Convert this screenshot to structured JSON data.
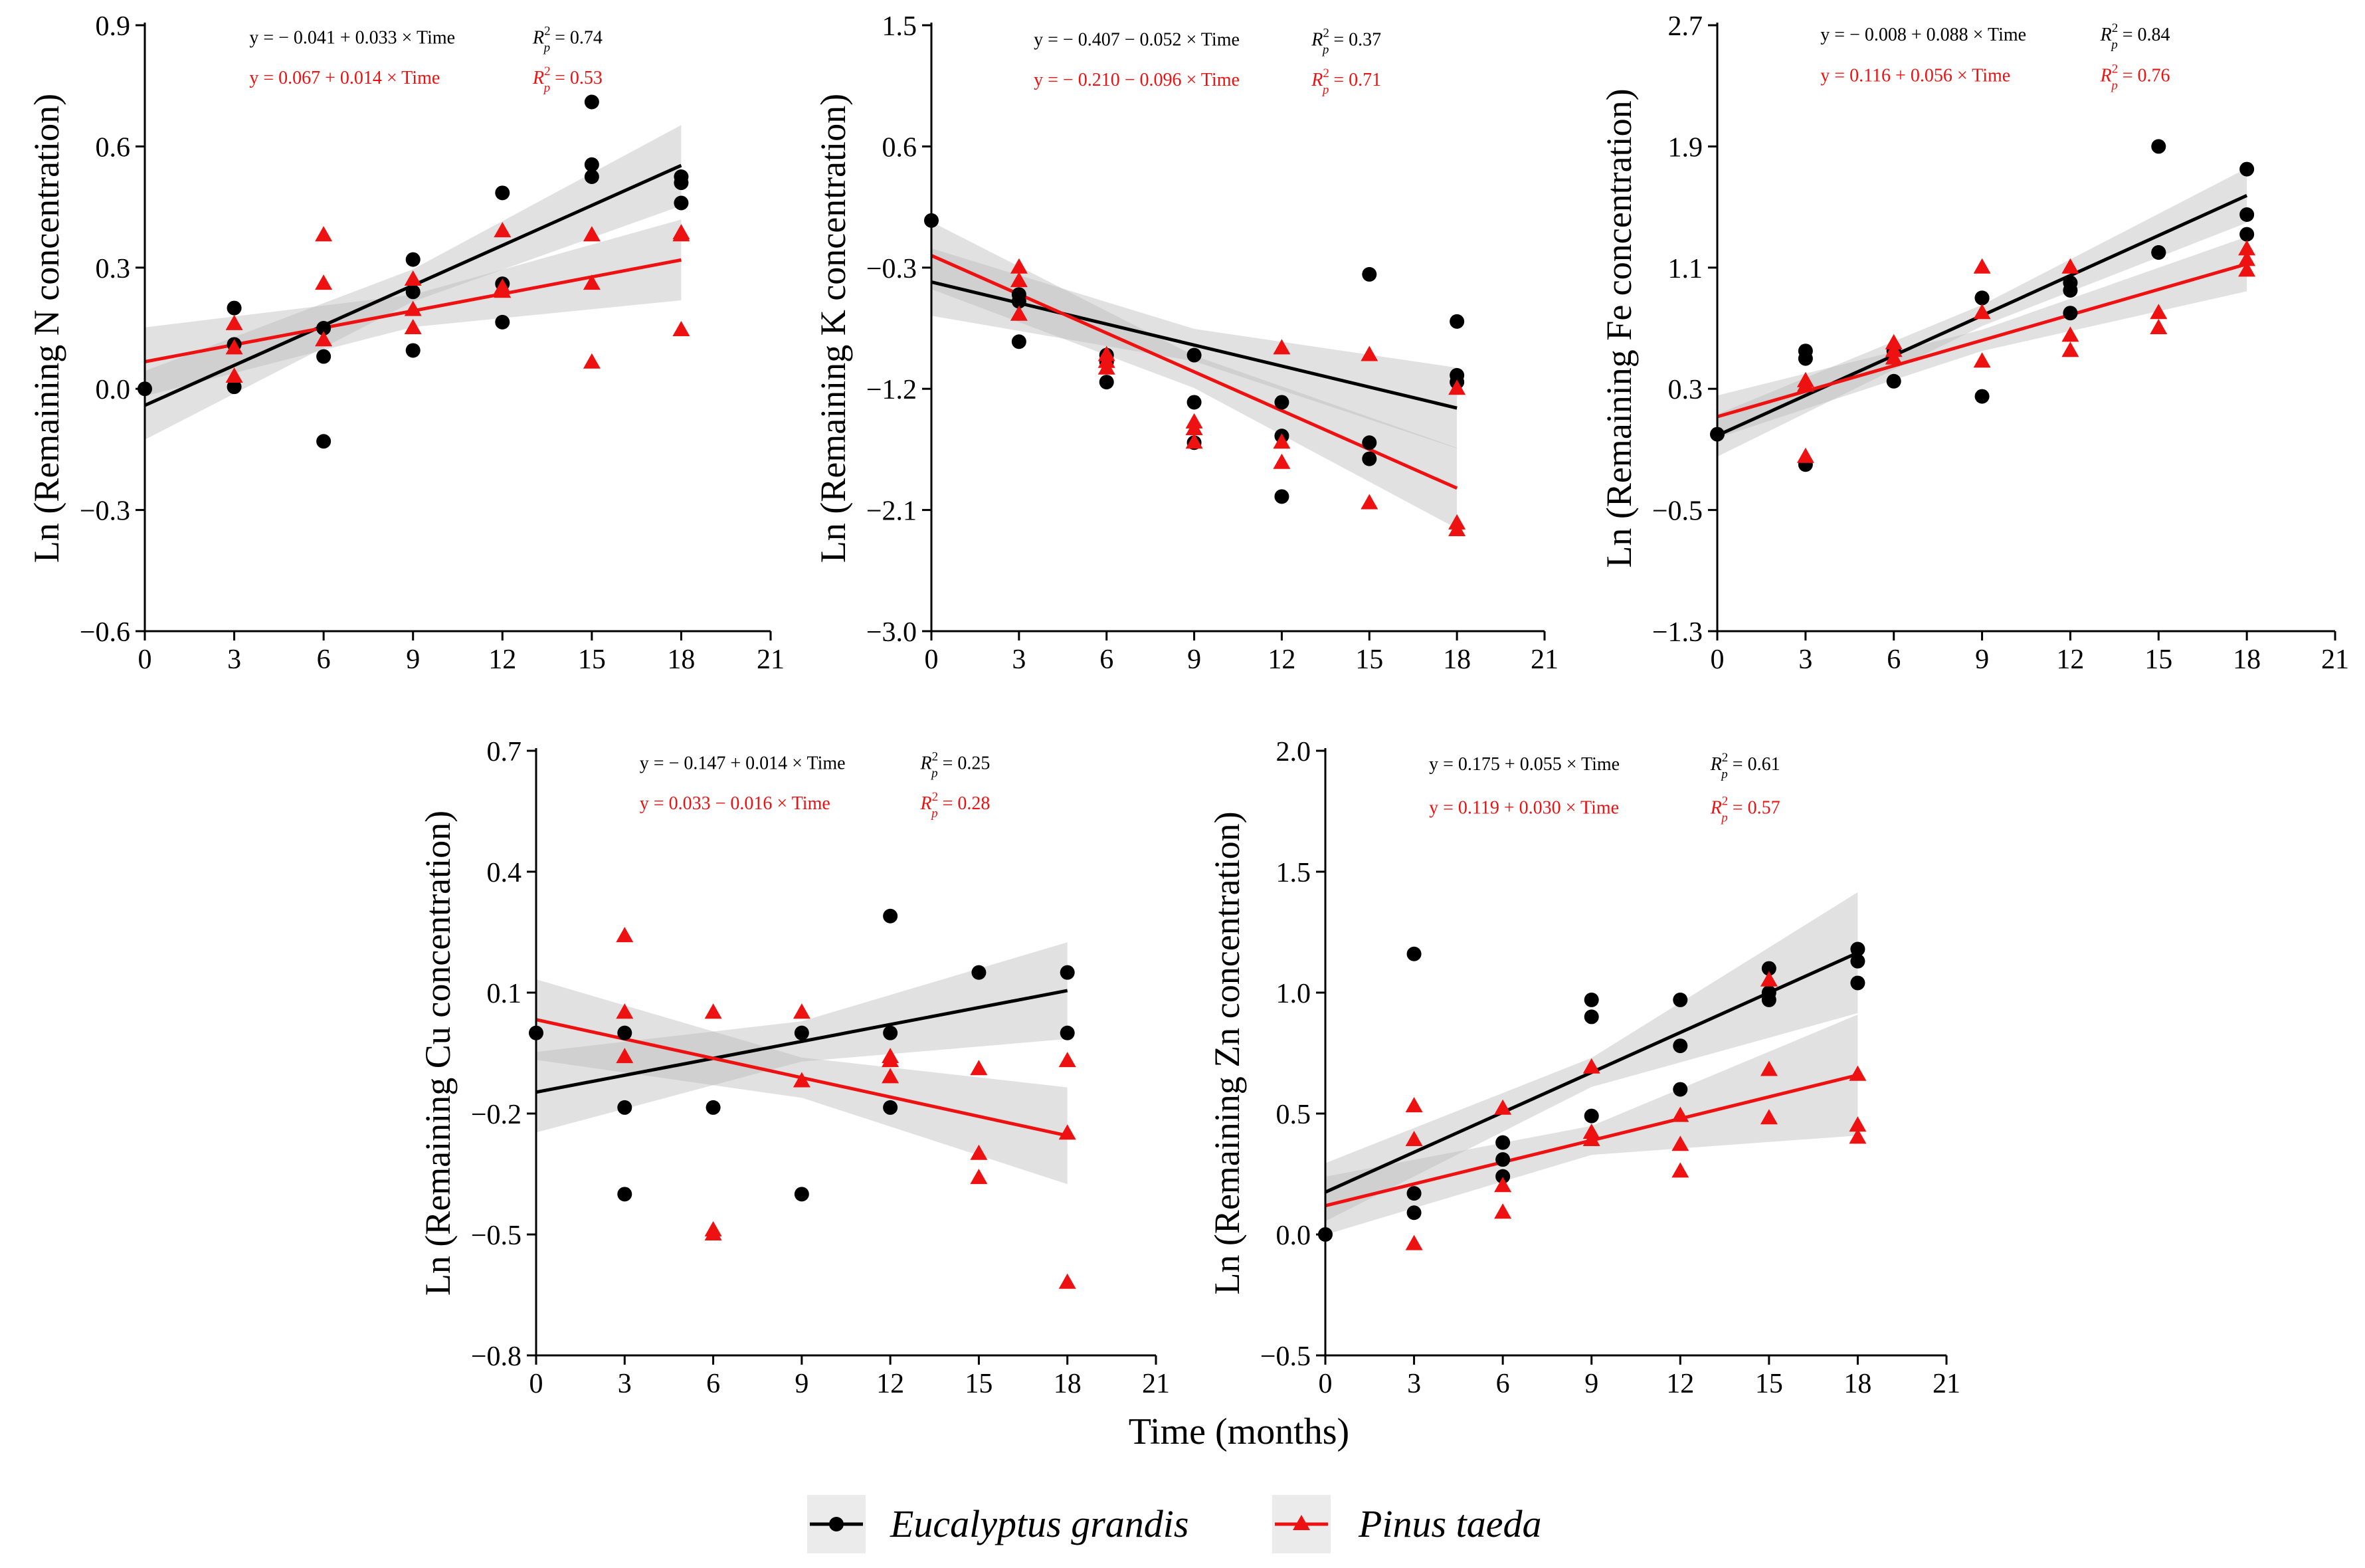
{
  "figure": {
    "xlabel": "Time (months)",
    "legend": [
      {
        "name": "Eucalyptus grandis",
        "color": "#000000",
        "marker": "circle"
      },
      {
        "name": "Pinus taeda",
        "color": "#ee1111",
        "marker": "triangle"
      }
    ]
  },
  "chart_data": [
    {
      "type": "scatter",
      "element": "N",
      "ylabel": "Ln (Remaining N concentration)",
      "xlim": [
        0,
        21
      ],
      "xticks": [
        0,
        3,
        6,
        9,
        12,
        15,
        18,
        21
      ],
      "ylim": [
        -0.6,
        0.9
      ],
      "yticks": [
        -0.6,
        -0.3,
        0.0,
        0.3,
        0.6,
        0.9
      ],
      "ytick_labels": [
        "−0.6",
        "−0.3",
        "0.0",
        "0.3",
        "0.6",
        "0.9"
      ],
      "eq_ymax": 0.855,
      "eq_ystep": 0.1,
      "band_halfwidth": [
        0.085,
        0.04,
        0.1
      ],
      "series": [
        {
          "name": "Eucalyptus grandis",
          "equation": "y = − 0.041 + 0.033 × Time",
          "r2": "0.74",
          "intercept": -0.041,
          "slope": 0.033,
          "points": [
            [
              0,
              0
            ],
            [
              3,
              0.2
            ],
            [
              3,
              0.11
            ],
            [
              3,
              0.005
            ],
            [
              6,
              0.15
            ],
            [
              6,
              0.08
            ],
            [
              6,
              -0.13
            ],
            [
              9,
              0.32
            ],
            [
              9,
              0.24
            ],
            [
              9,
              0.095
            ],
            [
              12,
              0.485
            ],
            [
              12,
              0.26
            ],
            [
              12,
              0.165
            ],
            [
              15,
              0.71
            ],
            [
              15,
              0.555
            ],
            [
              15,
              0.525
            ],
            [
              18,
              0.525
            ],
            [
              18,
              0.51
            ],
            [
              18,
              0.46
            ]
          ]
        },
        {
          "name": "Pinus taeda",
          "equation": "y = 0.067 + 0.014 × Time",
          "r2": "0.53",
          "intercept": 0.067,
          "slope": 0.014,
          "points": [
            [
              3,
              0.16
            ],
            [
              3,
              0.1
            ],
            [
              3,
              0.03
            ],
            [
              6,
              0.38
            ],
            [
              6,
              0.26
            ],
            [
              6,
              0.12
            ],
            [
              9,
              0.27
            ],
            [
              9,
              0.195
            ],
            [
              9,
              0.15
            ],
            [
              12,
              0.39
            ],
            [
              12,
              0.25
            ],
            [
              12,
              0.24
            ],
            [
              15,
              0.38
            ],
            [
              15,
              0.26
            ],
            [
              15,
              0.065
            ],
            [
              18,
              0.385
            ],
            [
              18,
              0.38
            ],
            [
              18,
              0.145
            ]
          ]
        }
      ]
    },
    {
      "type": "scatter",
      "element": "K",
      "ylabel": "Ln (Remaining K concentration)",
      "xlim": [
        0,
        21
      ],
      "xticks": [
        0,
        3,
        6,
        9,
        12,
        15,
        18,
        21
      ],
      "ylim": [
        -3.0,
        1.5
      ],
      "yticks": [
        -3.0,
        -2.1,
        -1.2,
        -0.3,
        0.6,
        1.5
      ],
      "ytick_labels": [
        "−3.0",
        "−2.1",
        "−1.2",
        "−0.3",
        "0.6",
        "1.5"
      ],
      "eq_ymax": 1.35,
      "eq_ystep": 0.3,
      "band_halfwidth": [
        0.25,
        0.12,
        0.3
      ],
      "series": [
        {
          "name": "Eucalyptus grandis",
          "equation": "y = − 0.407 − 0.052 × Time",
          "r2": "0.37",
          "intercept": -0.407,
          "slope": -0.052,
          "points": [
            [
              0,
              0.05
            ],
            [
              3,
              -0.5
            ],
            [
              3,
              -0.55
            ],
            [
              3,
              -0.85
            ],
            [
              6,
              -0.95
            ],
            [
              6,
              -1.0
            ],
            [
              6,
              -1.15
            ],
            [
              9,
              -0.95
            ],
            [
              9,
              -1.3
            ],
            [
              9,
              -1.6
            ],
            [
              12,
              -1.3
            ],
            [
              12,
              -1.55
            ],
            [
              12,
              -2.0
            ],
            [
              15,
              -0.35
            ],
            [
              15,
              -1.6
            ],
            [
              15,
              -1.72
            ],
            [
              18,
              -0.7
            ],
            [
              18,
              -1.1
            ],
            [
              18,
              -1.15
            ]
          ]
        },
        {
          "name": "Pinus taeda",
          "equation": "y = − 0.210 − 0.096 × Time",
          "r2": "0.71",
          "intercept": -0.21,
          "slope": -0.096,
          "points": [
            [
              3,
              -0.3
            ],
            [
              3,
              -0.4
            ],
            [
              3,
              -0.65
            ],
            [
              6,
              -0.95
            ],
            [
              6,
              -1.0
            ],
            [
              6,
              -1.05
            ],
            [
              9,
              -1.45
            ],
            [
              9,
              -1.5
            ],
            [
              9,
              -1.6
            ],
            [
              12,
              -0.9
            ],
            [
              12,
              -1.6
            ],
            [
              12,
              -1.75
            ],
            [
              15,
              -0.95
            ],
            [
              15,
              -2.05
            ],
            [
              18,
              -1.2
            ],
            [
              18,
              -2.2
            ],
            [
              18,
              -2.25
            ]
          ]
        }
      ]
    },
    {
      "type": "scatter",
      "element": "Fe",
      "ylabel": "Ln (Remaining Fe concentration)",
      "xlim": [
        0,
        21
      ],
      "xticks": [
        0,
        3,
        6,
        9,
        12,
        15,
        18,
        21
      ],
      "ylim": [
        -1.3,
        2.7
      ],
      "yticks": [
        -1.3,
        -0.5,
        0.3,
        1.1,
        1.9,
        2.7
      ],
      "ytick_labels": [
        "−1.3",
        "−0.5",
        "0.3",
        "1.1",
        "1.9",
        "2.7"
      ],
      "eq_ymax": 2.6,
      "eq_ystep": 0.27,
      "band_halfwidth": [
        0.14,
        0.07,
        0.18
      ],
      "series": [
        {
          "name": "Eucalyptus grandis",
          "equation": "y = − 0.008 + 0.088 × Time",
          "r2": "0.84",
          "intercept": -0.008,
          "slope": 0.088,
          "points": [
            [
              0,
              0
            ],
            [
              3,
              0.55
            ],
            [
              3,
              0.5
            ],
            [
              3,
              -0.2
            ],
            [
              6,
              0.55
            ],
            [
              6,
              0.35
            ],
            [
              9,
              0.9
            ],
            [
              9,
              0.9
            ],
            [
              9,
              0.25
            ],
            [
              12,
              1.0
            ],
            [
              12,
              0.95
            ],
            [
              12,
              0.8
            ],
            [
              15,
              1.9
            ],
            [
              15,
              1.2
            ],
            [
              15,
              1.2
            ],
            [
              18,
              1.75
            ],
            [
              18,
              1.45
            ],
            [
              18,
              1.32
            ]
          ]
        },
        {
          "name": "Pinus taeda",
          "equation": "y = 0.116 + 0.056 × Time",
          "r2": "0.76",
          "intercept": 0.116,
          "slope": 0.056,
          "points": [
            [
              3,
              0.35
            ],
            [
              3,
              0.32
            ],
            [
              3,
              -0.15
            ],
            [
              6,
              0.6
            ],
            [
              6,
              0.55
            ],
            [
              6,
              0.5
            ],
            [
              9,
              1.1
            ],
            [
              9,
              0.8
            ],
            [
              9,
              0.48
            ],
            [
              12,
              1.1
            ],
            [
              12,
              0.65
            ],
            [
              12,
              0.55
            ],
            [
              15,
              0.8
            ],
            [
              15,
              0.7
            ],
            [
              18,
              1.22
            ],
            [
              18,
              1.15
            ],
            [
              18,
              1.08
            ]
          ]
        }
      ]
    },
    {
      "type": "scatter",
      "element": "Cu",
      "ylabel": "Ln (Remaining Cu concentration)",
      "xlim": [
        0,
        21
      ],
      "xticks": [
        0,
        3,
        6,
        9,
        12,
        15,
        18,
        21
      ],
      "ylim": [
        -0.8,
        0.7
      ],
      "yticks": [
        -0.8,
        -0.5,
        -0.2,
        0.1,
        0.4,
        0.7
      ],
      "ytick_labels": [
        "−0.8",
        "−0.5",
        "−0.2",
        "0.1",
        "0.4",
        "0.7"
      ],
      "eq_ymax": 0.655,
      "eq_ystep": 0.1,
      "band_halfwidth": [
        0.1,
        0.05,
        0.12
      ],
      "series": [
        {
          "name": "Eucalyptus grandis",
          "equation": "y = − 0.147 + 0.014 × Time",
          "r2": "0.25",
          "intercept": -0.147,
          "slope": 0.014,
          "points": [
            [
              0,
              0
            ],
            [
              3,
              0
            ],
            [
              3,
              -0.185
            ],
            [
              3,
              -0.4
            ],
            [
              6,
              -0.185
            ],
            [
              9,
              0
            ],
            [
              9,
              -0.4
            ],
            [
              12,
              0.29
            ],
            [
              12,
              0
            ],
            [
              12,
              -0.185
            ],
            [
              15,
              0.15
            ],
            [
              18,
              0.15
            ],
            [
              18,
              0
            ]
          ]
        },
        {
          "name": "Pinus taeda",
          "equation": "y = 0.033 − 0.016 × Time",
          "r2": "0.28",
          "intercept": 0.033,
          "slope": -0.016,
          "points": [
            [
              3,
              0.24
            ],
            [
              3,
              0.05
            ],
            [
              3,
              -0.06
            ],
            [
              6,
              0.05
            ],
            [
              6,
              -0.49
            ],
            [
              6,
              -0.5
            ],
            [
              9,
              0.05
            ],
            [
              9,
              -0.12
            ],
            [
              12,
              -0.07
            ],
            [
              12,
              -0.06
            ],
            [
              12,
              -0.11
            ],
            [
              15,
              -0.09
            ],
            [
              15,
              -0.3
            ],
            [
              15,
              -0.36
            ],
            [
              18,
              -0.07
            ],
            [
              18,
              -0.25
            ],
            [
              18,
              -0.62
            ]
          ]
        }
      ]
    },
    {
      "type": "scatter",
      "element": "Zn",
      "ylabel": "Ln (Remaining Zn concentration)",
      "xlim": [
        0,
        21
      ],
      "xticks": [
        0,
        3,
        6,
        9,
        12,
        15,
        18,
        21
      ],
      "ylim": [
        -0.5,
        2.0
      ],
      "yticks": [
        -0.5,
        0.0,
        0.5,
        1.0,
        1.5,
        2.0
      ],
      "ytick_labels": [
        "−0.5",
        "0.0",
        "0.5",
        "1.0",
        "1.5",
        "2.0"
      ],
      "eq_ymax": 1.92,
      "eq_ystep": 0.18,
      "band_halfwidth": [
        0.12,
        0.06,
        0.25
      ],
      "series": [
        {
          "name": "Eucalyptus grandis",
          "equation": "y = 0.175 + 0.055 × Time",
          "r2": "0.61",
          "intercept": 0.175,
          "slope": 0.055,
          "points": [
            [
              0,
              0
            ],
            [
              3,
              1.16
            ],
            [
              3,
              0.17
            ],
            [
              3,
              0.09
            ],
            [
              6,
              0.38
            ],
            [
              6,
              0.31
            ],
            [
              6,
              0.24
            ],
            [
              9,
              0.97
            ],
            [
              9,
              0.9
            ],
            [
              9,
              0.49
            ],
            [
              12,
              0.97
            ],
            [
              12,
              0.78
            ],
            [
              12,
              0.6
            ],
            [
              15,
              1.1
            ],
            [
              15,
              1.0
            ],
            [
              15,
              0.97
            ],
            [
              18,
              1.18
            ],
            [
              18,
              1.13
            ],
            [
              18,
              1.04
            ]
          ]
        },
        {
          "name": "Pinus taeda",
          "equation": "y = 0.119 + 0.030 × Time",
          "r2": "0.57",
          "intercept": 0.119,
          "slope": 0.03,
          "points": [
            [
              3,
              0.53
            ],
            [
              3,
              0.39
            ],
            [
              3,
              -0.04
            ],
            [
              6,
              0.52
            ],
            [
              6,
              0.2
            ],
            [
              6,
              0.09
            ],
            [
              9,
              0.69
            ],
            [
              9,
              0.42
            ],
            [
              9,
              0.39
            ],
            [
              12,
              0.49
            ],
            [
              12,
              0.37
            ],
            [
              12,
              0.26
            ],
            [
              15,
              1.05
            ],
            [
              15,
              0.68
            ],
            [
              15,
              0.48
            ],
            [
              18,
              0.66
            ],
            [
              18,
              0.45
            ],
            [
              18,
              0.4
            ]
          ]
        }
      ]
    }
  ]
}
